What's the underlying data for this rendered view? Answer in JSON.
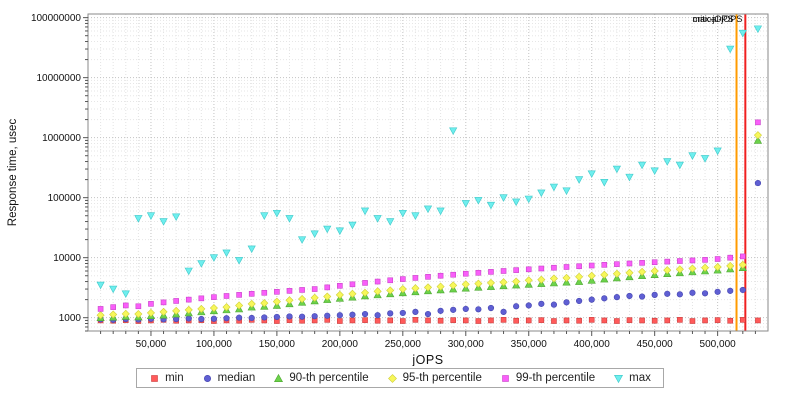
{
  "chart_data": {
    "type": "scatter",
    "title": "",
    "xlabel": "jOPS",
    "ylabel": "Response time, usec",
    "y_scale": "log",
    "grid": true,
    "legend_position": "bottom",
    "xlim": [
      0,
      540000
    ],
    "ylim": [
      600,
      115000000
    ],
    "x_ticks": [
      50000,
      100000,
      150000,
      200000,
      250000,
      300000,
      350000,
      400000,
      450000,
      500000
    ],
    "x_tick_labels": [
      "50,000",
      "100,000",
      "150,000",
      "200,000",
      "250,000",
      "300,000",
      "350,000",
      "400,000",
      "450,000",
      "500,000"
    ],
    "y_ticks": [
      1000,
      10000,
      100000,
      1000000,
      10000000,
      100000000
    ],
    "y_tick_labels": [
      "1000",
      "10000",
      "100000",
      "1000000",
      "10000000",
      "100000000"
    ],
    "x": [
      10000,
      20000,
      30000,
      40000,
      50000,
      60000,
      70000,
      80000,
      90000,
      100000,
      110000,
      120000,
      130000,
      140000,
      150000,
      160000,
      170000,
      180000,
      190000,
      200000,
      210000,
      220000,
      230000,
      240000,
      250000,
      260000,
      270000,
      280000,
      290000,
      300000,
      310000,
      320000,
      330000,
      340000,
      350000,
      360000,
      370000,
      380000,
      390000,
      400000,
      410000,
      420000,
      430000,
      440000,
      450000,
      460000,
      470000,
      480000,
      490000,
      500000,
      510000,
      520000,
      532000
    ],
    "series": [
      {
        "name": "min",
        "marker": "square",
        "color": "#ff5a5a",
        "edge": "#cc3c3c",
        "values": [
          900,
          890,
          910,
          880,
          900,
          920,
          890,
          900,
          910,
          880,
          900,
          890,
          920,
          900,
          880,
          910,
          890,
          900,
          920,
          880,
          900,
          910,
          890,
          900,
          880,
          920,
          900,
          890,
          910,
          900,
          880,
          900,
          920,
          890,
          900,
          910,
          880,
          900,
          890,
          920,
          900,
          880,
          910,
          900,
          890,
          900,
          920,
          880,
          900,
          910,
          890,
          920,
          900
        ]
      },
      {
        "name": "median",
        "marker": "circle",
        "color": "#5f5fd3",
        "edge": "#4646b0",
        "values": [
          940,
          920,
          950,
          930,
          960,
          940,
          950,
          970,
          950,
          960,
          980,
          1000,
          990,
          1010,
          1030,
          1050,
          1040,
          1060,
          1080,
          1100,
          1120,
          1150,
          1100,
          1180,
          1200,
          1250,
          1150,
          1300,
          1350,
          1400,
          1380,
          1450,
          1250,
          1550,
          1600,
          1700,
          1650,
          1800,
          1900,
          2000,
          2100,
          2200,
          2300,
          2250,
          2400,
          2500,
          2450,
          2600,
          2550,
          2700,
          2800,
          2900,
          175000
        ]
      },
      {
        "name": "90-th percentile",
        "marker": "triangle-up",
        "color": "#6cd24b",
        "edge": "#4ea832",
        "values": [
          1000,
          1020,
          1050,
          1030,
          1080,
          1100,
          1150,
          1200,
          1250,
          1300,
          1350,
          1400,
          1500,
          1550,
          1600,
          1700,
          1800,
          1900,
          2000,
          2100,
          2200,
          2300,
          2400,
          2500,
          2600,
          2700,
          2800,
          2900,
          3000,
          3100,
          3200,
          3300,
          3400,
          3500,
          3600,
          3700,
          3800,
          3900,
          4000,
          4200,
          4400,
          4600,
          4800,
          5000,
          5200,
          5400,
          5600,
          5800,
          6000,
          6200,
          6500,
          6800,
          900000
        ]
      },
      {
        "name": "95-th percentile",
        "marker": "diamond",
        "color": "#f7f75a",
        "edge": "#cfcf3a",
        "values": [
          1100,
          1130,
          1160,
          1150,
          1200,
          1250,
          1300,
          1350,
          1400,
          1450,
          1500,
          1600,
          1700,
          1750,
          1850,
          1950,
          2050,
          2150,
          2250,
          2400,
          2500,
          2600,
          2750,
          2850,
          3000,
          3100,
          3200,
          3300,
          3450,
          3600,
          3700,
          3800,
          3900,
          4000,
          4200,
          4300,
          4500,
          4600,
          4800,
          5000,
          5200,
          5400,
          5600,
          5800,
          6000,
          6200,
          6400,
          6600,
          6800,
          7000,
          7300,
          7600,
          1100000
        ]
      },
      {
        "name": "99-th percentile",
        "marker": "square",
        "color": "#f95ef9",
        "edge": "#c943c9",
        "values": [
          1400,
          1500,
          1600,
          1550,
          1700,
          1800,
          1900,
          2000,
          2100,
          2200,
          2300,
          2400,
          2500,
          2600,
          2700,
          2800,
          2900,
          3000,
          3200,
          3400,
          3600,
          3800,
          4000,
          4200,
          4400,
          4600,
          4800,
          5000,
          5200,
          5400,
          5600,
          5800,
          6000,
          6200,
          6400,
          6600,
          6800,
          7000,
          7200,
          7400,
          7600,
          7800,
          8000,
          8200,
          8400,
          8600,
          8800,
          9000,
          9200,
          9500,
          10000,
          10500,
          1800000
        ]
      },
      {
        "name": "max",
        "marker": "triangle-down",
        "color": "#6eeeee",
        "edge": "#3fc9c9",
        "values": [
          3500,
          3000,
          2500,
          45000,
          50000,
          40000,
          48000,
          6000,
          8000,
          10000,
          12000,
          9000,
          14000,
          50000,
          55000,
          45000,
          20000,
          25000,
          30000,
          28000,
          35000,
          60000,
          45000,
          40000,
          55000,
          50000,
          65000,
          60000,
          1300000,
          80000,
          90000,
          75000,
          100000,
          85000,
          95000,
          120000,
          150000,
          130000,
          200000,
          250000,
          180000,
          300000,
          220000,
          350000,
          280000,
          400000,
          350000,
          500000,
          450000,
          600000,
          30000000,
          55000000,
          65000000
        ]
      }
    ],
    "annotations": [
      {
        "label": "max-jOPS",
        "x": 515000,
        "line_color": "#ff9b00",
        "label_color": "#333333"
      },
      {
        "label": "critical-jOPS",
        "x": 522000,
        "line_color": "#f02020",
        "label_color": "#cc2222"
      }
    ]
  },
  "legend": {
    "items": [
      "min",
      "median",
      "90-th percentile",
      "95-th percentile",
      "99-th percentile",
      "max"
    ]
  }
}
